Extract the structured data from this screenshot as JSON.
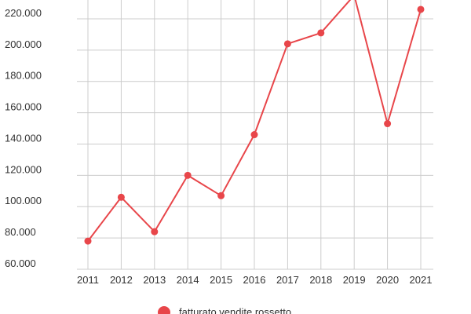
{
  "chart_data": {
    "type": "line",
    "x": [
      "2011",
      "2012",
      "2013",
      "2014",
      "2015",
      "2016",
      "2017",
      "2018",
      "2019",
      "2020",
      "2021"
    ],
    "series": [
      {
        "name": "fatturato vendite rossetto",
        "values": [
          78000,
          106000,
          84000,
          120000,
          107000,
          146000,
          204000,
          211000,
          235000,
          153000,
          226000
        ],
        "color": "#e8464a"
      }
    ],
    "yticks": [
      "60.000",
      "80.000",
      "100.000",
      "120.000",
      "140.000",
      "160.000",
      "180.000",
      "200.000",
      "220.000"
    ],
    "ytick_values": [
      60000,
      80000,
      100000,
      120000,
      140000,
      160000,
      180000,
      200000,
      220000
    ],
    "ylim": [
      60000,
      230000
    ],
    "grid": true,
    "legend_position": "bottom",
    "gridline_color": "#cccccc",
    "text_color": "#333333"
  }
}
